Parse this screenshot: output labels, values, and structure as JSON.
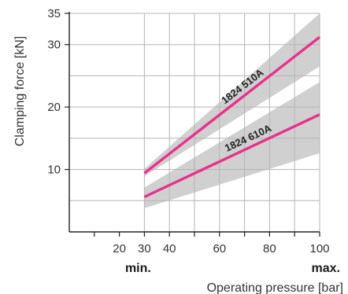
{
  "chart_data": {
    "type": "line",
    "xlabel": "Operating pressure [bar]",
    "ylabel": "Clamping force [kN]",
    "xlim": [
      0,
      100
    ],
    "ylim": [
      0,
      35
    ],
    "x_ticks": [
      20,
      30,
      40,
      60,
      80,
      100
    ],
    "x_ticks_minor": [
      10,
      50,
      70,
      90
    ],
    "y_ticks": [
      10,
      20,
      30,
      35
    ],
    "y_gridlines": [
      5,
      10,
      15,
      20,
      25,
      30,
      35
    ],
    "x_gridlines": [
      30,
      40,
      50,
      60,
      70,
      80,
      90,
      100
    ],
    "x_min_label": "min.",
    "x_max_label": "max.",
    "grid": true,
    "series": [
      {
        "name": "1824 510A",
        "color": "#e8318c",
        "band_color": "#c8c8c8",
        "x": [
          30,
          100
        ],
        "y": [
          9.4,
          31.2
        ],
        "band_low": [
          8.9,
          26.5
        ],
        "band_high": [
          10.1,
          35.0
        ]
      },
      {
        "name": "1824 610A",
        "color": "#e8318c",
        "band_color": "#c8c8c8",
        "x": [
          30,
          100
        ],
        "y": [
          5.6,
          18.8
        ],
        "band_low": [
          3.8,
          12.6
        ],
        "band_high": [
          7.1,
          24.0
        ]
      }
    ]
  }
}
